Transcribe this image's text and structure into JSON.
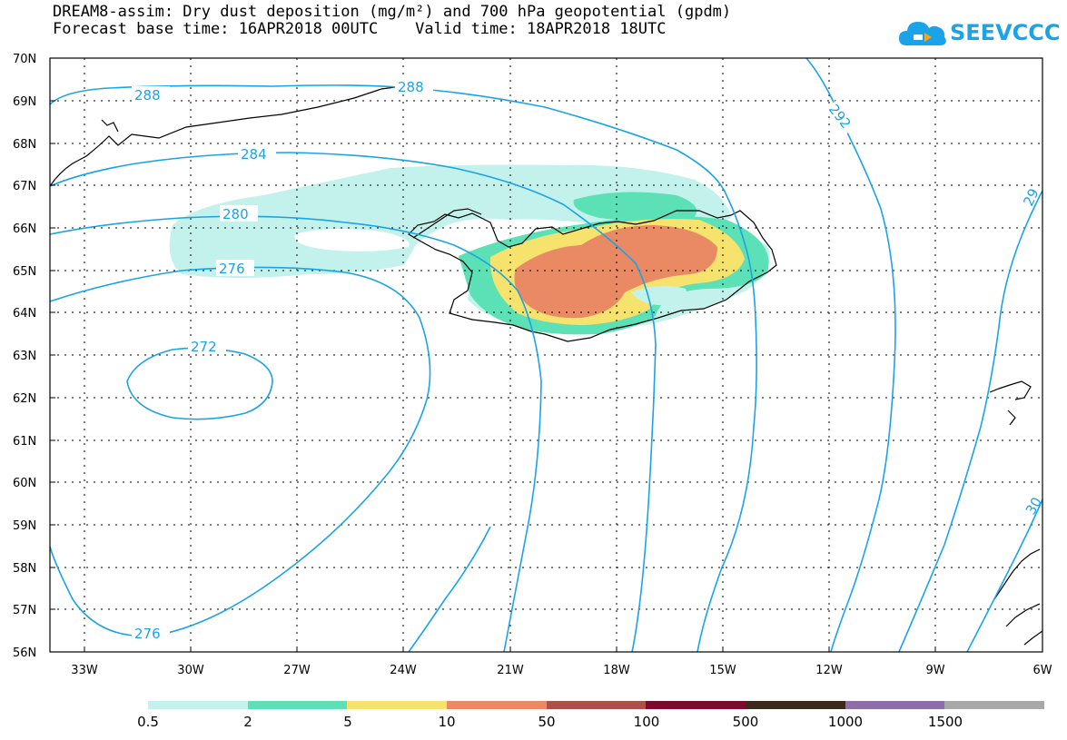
{
  "title": {
    "line1": "DREAM8-assim: Dry dust deposition (mg/m²) and 700 hPa geopotential (gpdm)",
    "line2": "Forecast base time: 16APR2018 00UTC    Valid time: 18APR2018 18UTC"
  },
  "logo": {
    "text": "SEEVCCC",
    "icon": "cloud-icon"
  },
  "axes": {
    "lat_labels": [
      "70N",
      "69N",
      "68N",
      "67N",
      "66N",
      "65N",
      "64N",
      "63N",
      "62N",
      "61N",
      "60N",
      "59N",
      "58N",
      "57N",
      "56N"
    ],
    "lon_labels": [
      "33W",
      "30W",
      "27W",
      "24W",
      "21W",
      "18W",
      "15W",
      "12W",
      "9W",
      "6W"
    ]
  },
  "contours": {
    "labels": [
      "288",
      "288",
      "292",
      "284",
      "280",
      "276",
      "272",
      "276",
      "29",
      "30"
    ]
  },
  "legend": {
    "labels": [
      "0.5",
      "2",
      "5",
      "10",
      "50",
      "100",
      "500",
      "1000",
      "1500"
    ],
    "colors": [
      "#c2f2eb",
      "#5ce0b5",
      "#f5e36e",
      "#e98a65",
      "#a8524a",
      "#7b0a2c",
      "#3b2a1a",
      "#8e6ea8",
      "#a8a8a8"
    ]
  },
  "colors": {
    "contour": "#1aa3e8"
  }
}
